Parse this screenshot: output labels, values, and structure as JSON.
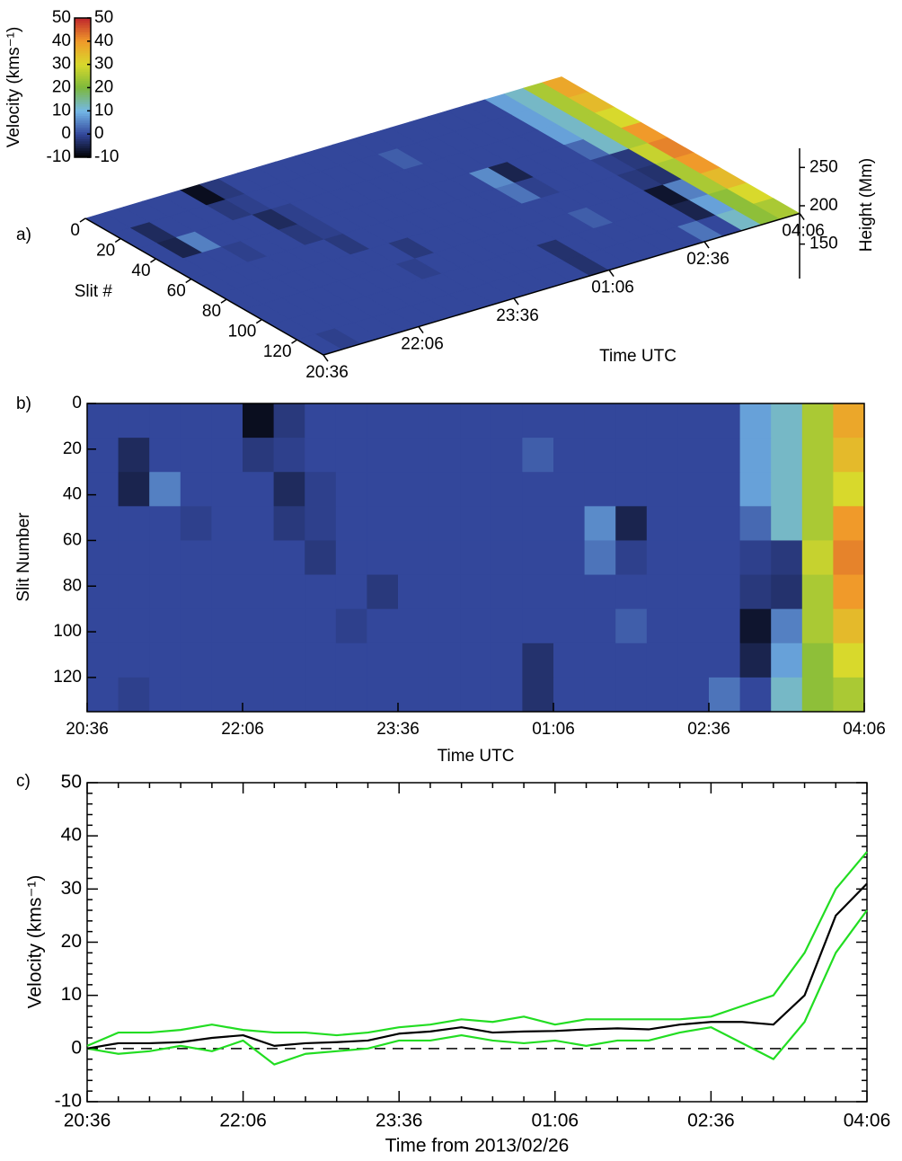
{
  "chart_data": [
    {
      "type": "surface3d",
      "panel_label": "a)",
      "xlabel": "Time UTC",
      "ylabel": "Slit #",
      "zlabel": "Height (Mm)",
      "xlim": [
        0,
        450
      ],
      "xticks": [
        {
          "value": 0,
          "label": "20:36"
        },
        {
          "value": 90,
          "label": "22:06"
        },
        {
          "value": 180,
          "label": "23:36"
        },
        {
          "value": 270,
          "label": "01:06"
        },
        {
          "value": 360,
          "label": "02:36"
        },
        {
          "value": 450,
          "label": "04:06"
        }
      ],
      "ylim": [
        0,
        135
      ],
      "yticks": [
        0,
        20,
        40,
        60,
        80,
        100,
        120
      ],
      "zlim": [
        105,
        275
      ],
      "zticks": [
        150,
        200,
        250
      ],
      "colorbar": {
        "label": "Velocity (kms⁻¹)",
        "clim": [
          -10,
          50
        ],
        "ticks": [
          -10,
          0,
          10,
          20,
          30,
          40,
          50
        ],
        "colors": [
          "#000000",
          "#33479b",
          "#74b8e8",
          "#7cb83c",
          "#d8d92c",
          "#f09a2a",
          "#c0272d"
        ]
      }
    },
    {
      "type": "heatmap",
      "panel_label": "b)",
      "xlabel": "Time UTC",
      "ylabel": "Slit Number",
      "xlim": [
        0,
        450
      ],
      "xticks": [
        {
          "value": 0,
          "label": "20:36"
        },
        {
          "value": 90,
          "label": "22:06"
        },
        {
          "value": 180,
          "label": "23:36"
        },
        {
          "value": 270,
          "label": "01:06"
        },
        {
          "value": 360,
          "label": "02:36"
        },
        {
          "value": 450,
          "label": "04:06"
        }
      ],
      "ylim": [
        0,
        135
      ],
      "yticks": [
        0,
        20,
        40,
        60,
        80,
        100,
        120
      ],
      "values": [
        [
          0,
          0,
          0,
          0,
          0,
          -8,
          -2,
          0,
          0,
          0,
          0,
          0,
          0,
          0,
          0,
          0,
          0,
          0,
          0,
          0,
          0,
          8,
          12,
          25,
          38
        ],
        [
          0,
          -4,
          0,
          0,
          0,
          -2,
          -1,
          0,
          0,
          0,
          0,
          0,
          0,
          0,
          2,
          0,
          0,
          0,
          0,
          0,
          0,
          8,
          12,
          25,
          35
        ],
        [
          0,
          -5,
          5,
          0,
          0,
          0,
          -4,
          -1,
          0,
          0,
          0,
          0,
          0,
          0,
          0,
          0,
          0,
          0,
          0,
          0,
          0,
          8,
          12,
          25,
          30
        ],
        [
          0,
          0,
          0,
          -1,
          0,
          0,
          -2,
          -1,
          0,
          0,
          0,
          0,
          0,
          0,
          0,
          0,
          6,
          -5,
          0,
          0,
          0,
          3,
          12,
          25,
          40
        ],
        [
          0,
          0,
          0,
          0,
          0,
          0,
          0,
          -2,
          0,
          0,
          0,
          0,
          0,
          0,
          0,
          0,
          4,
          -1,
          0,
          0,
          0,
          -1,
          -2,
          28,
          42
        ],
        [
          0,
          0,
          0,
          0,
          0,
          0,
          0,
          0,
          0,
          -2,
          0,
          0,
          0,
          0,
          0,
          0,
          0,
          0,
          0,
          0,
          0,
          -2,
          -3,
          25,
          40
        ],
        [
          0,
          0,
          0,
          0,
          0,
          0,
          0,
          0,
          -1,
          0,
          0,
          0,
          0,
          0,
          0,
          0,
          0,
          2,
          0,
          0,
          0,
          -7,
          5,
          25,
          35
        ],
        [
          0,
          0,
          0,
          0,
          0,
          0,
          0,
          0,
          0,
          0,
          0,
          0,
          0,
          0,
          -3,
          0,
          0,
          0,
          0,
          0,
          0,
          -5,
          8,
          22,
          30
        ],
        [
          0,
          -1,
          0,
          0,
          0,
          0,
          0,
          0,
          0,
          0,
          0,
          0,
          0,
          0,
          -3,
          0,
          0,
          0,
          0,
          0,
          4,
          0,
          12,
          22,
          25
        ]
      ]
    },
    {
      "type": "line",
      "panel_label": "c)",
      "xlabel": "Time from 2013/02/26",
      "ylabel": "Velocity (kms⁻¹)",
      "xlim": [
        0,
        450
      ],
      "xticks": [
        {
          "value": 0,
          "label": "20:36"
        },
        {
          "value": 90,
          "label": "22:06"
        },
        {
          "value": 180,
          "label": "23:36"
        },
        {
          "value": 270,
          "label": "01:06"
        },
        {
          "value": 360,
          "label": "02:36"
        },
        {
          "value": 450,
          "label": "04:06"
        }
      ],
      "xminorticks": [
        18,
        36,
        54,
        72,
        108,
        126,
        144,
        162,
        198,
        216,
        234,
        252,
        288,
        306,
        324,
        342,
        378,
        396,
        414,
        432
      ],
      "ylim": [
        -10,
        50
      ],
      "yticks": [
        -10,
        0,
        10,
        20,
        30,
        40,
        50
      ],
      "yminorticks": [
        -8,
        -6,
        -4,
        -2,
        2,
        4,
        6,
        8,
        12,
        14,
        16,
        18,
        22,
        24,
        26,
        28,
        32,
        34,
        36,
        38,
        42,
        44,
        46,
        48
      ],
      "reference_line": 0,
      "x": [
        0,
        18,
        36,
        54,
        72,
        90,
        108,
        126,
        144,
        162,
        180,
        198,
        216,
        234,
        252,
        270,
        288,
        306,
        324,
        342,
        360,
        378,
        396,
        414,
        432,
        450
      ],
      "series": [
        {
          "color": "#22dd22",
          "values": [
            0.5,
            3,
            3,
            3.5,
            4.5,
            3.5,
            3,
            3,
            2.5,
            3,
            4,
            4.5,
            5.5,
            5,
            6,
            4.5,
            5.5,
            5.5,
            5.5,
            5.5,
            6,
            8,
            10,
            18,
            30,
            37
          ]
        },
        {
          "color": "#22dd22",
          "values": [
            0,
            -1,
            -0.5,
            0.5,
            -0.5,
            1.5,
            -3,
            -1,
            -0.5,
            0,
            1.5,
            1.5,
            2.5,
            1.5,
            1,
            1.5,
            0.5,
            1.5,
            1.5,
            3,
            4,
            1,
            -2,
            5,
            18,
            26
          ]
        },
        {
          "color": "#000000",
          "values": [
            0,
            1,
            1,
            1.2,
            2,
            2.5,
            0.5,
            1,
            1.2,
            1.5,
            2.8,
            3.2,
            4,
            3,
            3.2,
            3.3,
            3.6,
            3.8,
            3.6,
            4.5,
            5,
            5,
            4.5,
            10,
            25,
            31
          ]
        }
      ]
    }
  ]
}
